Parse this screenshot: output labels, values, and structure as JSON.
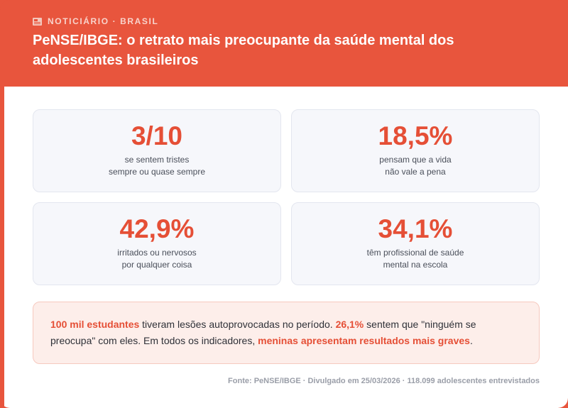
{
  "header": {
    "kicker": "NOTICIÁRIO · BRASIL",
    "kicker_icon": "newspaper-icon",
    "title": "PeNSE/IBGE: o retrato mais preocupante da saúde mental dos adolescentes brasileiros"
  },
  "stats": [
    {
      "value": "3/10",
      "line1": "se sentem tristes",
      "line2": "sempre ou quase sempre"
    },
    {
      "value": "18,5%",
      "line1": "pensam que a vida",
      "line2": "não vale a pena"
    },
    {
      "value": "42,9%",
      "line1": "irritados ou nervosos",
      "line2": "por qualquer coisa"
    },
    {
      "value": "34,1%",
      "line1": "têm profissional de saúde",
      "line2": "mental na escola"
    }
  ],
  "note": {
    "h1": "100 mil estudantes",
    "t1": " tiveram lesões autoprovocadas no período. ",
    "h2": "26,1%",
    "t2": " sentem que \"ninguém se preocupa\" com eles. Em todos os indicadores, ",
    "h3": "meninas apresentam resultados mais graves",
    "t3": "."
  },
  "source": "Fonte: PeNSE/IBGE · Divulgado em 25/03/2026 · 118.099 adolescentes entrevistados",
  "colors": {
    "accent": "#e8553d",
    "highlight": "#e54f36"
  }
}
